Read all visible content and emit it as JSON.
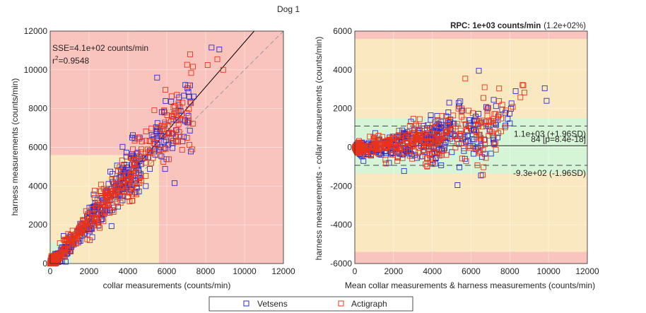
{
  "figure": {
    "title": "Dog 1",
    "legend": {
      "placement": "bottom-center",
      "entries": [
        {
          "name": "Vetsens",
          "color": "#2b2bd0"
        },
        {
          "name": "Actigraph",
          "color": "#e8341c"
        }
      ]
    }
  },
  "chart_data": [
    {
      "type": "scatter",
      "xlabel": "collar measurements (counts/min)",
      "ylabel": "harness measurements (counts/min)",
      "xlim": [
        0,
        12000
      ],
      "ylim": [
        0,
        12000
      ],
      "xticks": [
        0,
        2000,
        4000,
        6000,
        8000,
        10000,
        12000
      ],
      "yticks": [
        0,
        2000,
        4000,
        6000,
        8000,
        10000,
        12000
      ],
      "grid": true,
      "zones": [
        {
          "name": "outer",
          "color": "#f9c4bd",
          "x": [
            0,
            12000
          ],
          "y": [
            0,
            12000
          ]
        },
        {
          "name": "rpc",
          "color": "#fae8c0",
          "x": [
            0,
            5600
          ],
          "y": [
            0,
            5600
          ]
        },
        {
          "name": "agreement",
          "color": "#d6f5d6",
          "x": [
            0,
            1100
          ],
          "y": [
            0,
            1100
          ]
        }
      ],
      "annotations": [
        "SSE=4.1e+02 counts/min",
        "r",
        "2",
        "=0.9548"
      ],
      "fit_line": {
        "slope": 1.155,
        "intercept": -120
      },
      "identity_line": true,
      "series": [
        {
          "name": "Vetsens",
          "color": "#2b2bd0",
          "count": 420,
          "seed": 11,
          "highlights": [
            [
              8300,
              11150
            ],
            [
              8700,
              11050
            ],
            [
              6400,
              4150
            ],
            [
              7200,
              9200
            ],
            [
              5500,
              9600
            ]
          ]
        },
        {
          "name": "Actigraph",
          "color": "#e8341c",
          "count": 460,
          "seed": 29,
          "highlights": [
            [
              7200,
              10800
            ],
            [
              8900,
              10000
            ],
            [
              8100,
              10250
            ],
            [
              8600,
              10550
            ]
          ]
        }
      ]
    },
    {
      "type": "scatter",
      "title": "RPC: 1e+03 counts/min",
      "title_suffix": "(1.2e+02%)",
      "xlabel": "Mean collar measurements & harness measurements (counts/min)",
      "ylabel": "harness measurements - collar measurements (counts/min)",
      "xlim": [
        0,
        12000
      ],
      "ylim": [
        -6000,
        6000
      ],
      "xticks": [
        0,
        2000,
        4000,
        6000,
        8000,
        10000,
        12000
      ],
      "yticks": [
        -6000,
        -4000,
        -2000,
        0,
        2000,
        4000,
        6000
      ],
      "grid": true,
      "zones": [
        {
          "name": "outer",
          "color": "#f9c4bd",
          "y": [
            -6000,
            6000
          ]
        },
        {
          "name": "rpc",
          "color": "#fae8c0",
          "y": [
            -5400,
            5600
          ]
        },
        {
          "name": "agreement",
          "color": "#d6f5d6",
          "y": [
            -1350,
            1500
          ]
        }
      ],
      "lines": [
        {
          "label": "1.1e+03 (+1.96SD)",
          "y": 1100,
          "style": "dashed"
        },
        {
          "label": "84 [p=8.4e-18]",
          "y": 84,
          "style": "solid"
        },
        {
          "label": "-9.3e+02 (-1.96SD)",
          "y": -930,
          "style": "dashed"
        }
      ],
      "series": [
        {
          "name": "Vetsens",
          "color": "#2b2bd0",
          "count": 420,
          "seed": 11,
          "highlights": [
            [
              6400,
              3950
            ],
            [
              9800,
              3050
            ],
            [
              9900,
              2400
            ],
            [
              5300,
              -1950
            ],
            [
              8300,
              2900
            ]
          ]
        },
        {
          "name": "Actigraph",
          "color": "#e8341c",
          "count": 460,
          "seed": 29,
          "highlights": [
            [
              5700,
              3550
            ],
            [
              6700,
              3100
            ],
            [
              7800,
              1900
            ],
            [
              8700,
              3200
            ]
          ]
        }
      ]
    }
  ]
}
